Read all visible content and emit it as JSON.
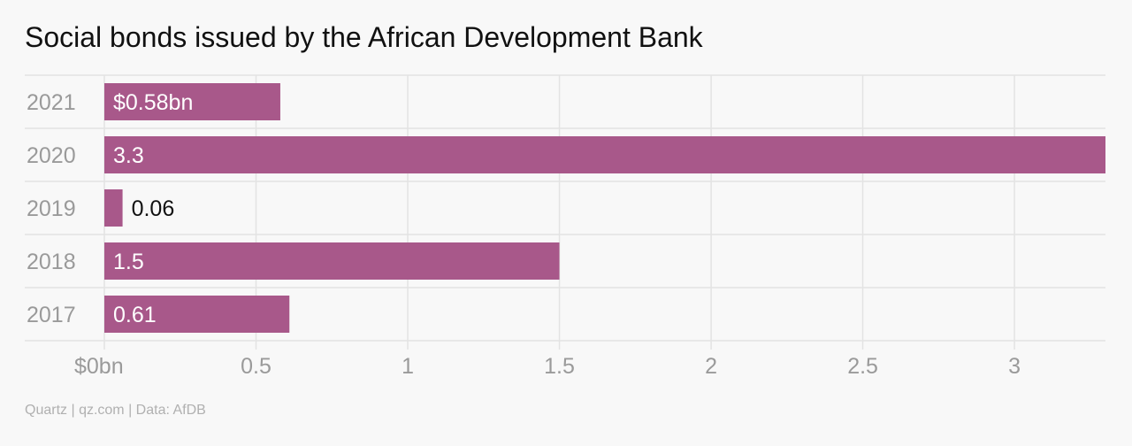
{
  "chart_data": {
    "type": "bar",
    "orientation": "horizontal",
    "title": "Social bonds issued by the African Development Bank",
    "categories": [
      "2021",
      "2020",
      "2019",
      "2018",
      "2017"
    ],
    "values": [
      0.58,
      3.3,
      0.06,
      1.5,
      0.61
    ],
    "value_labels": [
      "$0.58bn",
      "3.3",
      "0.06",
      "1.5",
      "0.61"
    ],
    "xlim": [
      0,
      3.3
    ],
    "x_ticks": [
      0,
      0.5,
      1,
      1.5,
      2,
      2.5,
      3
    ],
    "x_tick_labels": [
      "$0bn",
      "0.5",
      "1",
      "1.5",
      "2",
      "2.5",
      "3"
    ],
    "xlabel": "",
    "ylabel": "",
    "grid": true,
    "legend": "none",
    "bar_color": "#a8588a"
  },
  "source": "Quartz | qz.com | Data: AfDB"
}
